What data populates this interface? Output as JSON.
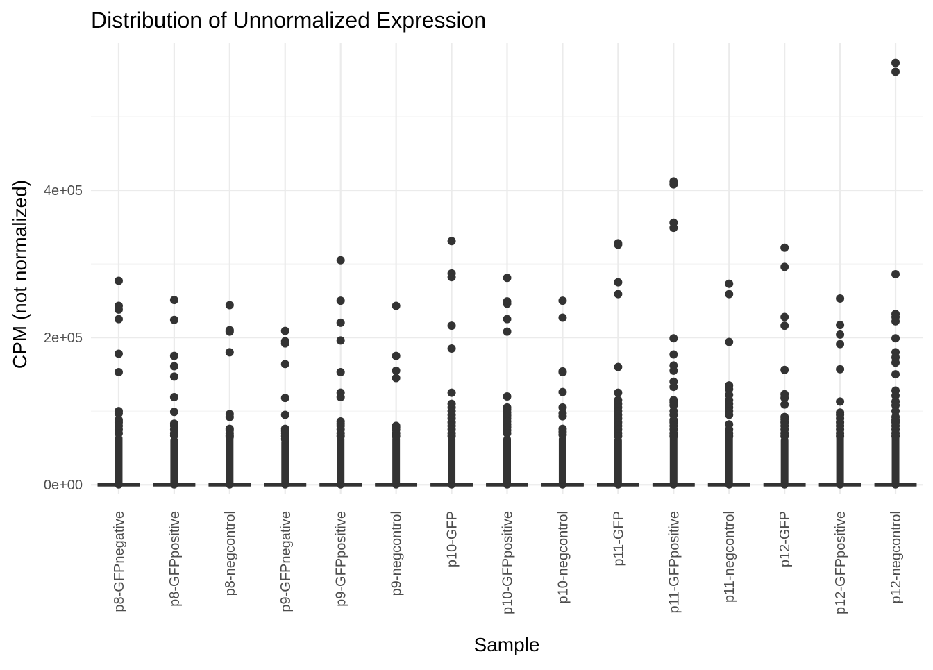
{
  "chart_data": {
    "type": "boxplot",
    "title": "Distribution of Unnormalized Expression",
    "xlabel": "Sample",
    "ylabel": "CPM (not normalized)",
    "ylim": [
      -13000,
      600000
    ],
    "y_ticks": [
      0,
      200000,
      400000
    ],
    "y_tick_labels": [
      "0e+00",
      "2e+05",
      "4e+05"
    ],
    "grid": true,
    "point_color": "#333333",
    "categories": [
      "p8-GFPnegative",
      "p8-GFPpositive",
      "p8-negcontrol",
      "p9-GFPnegative",
      "p9-GFPpositive",
      "p9-negcontrol",
      "p10-GFP",
      "p10-GFPpositive",
      "p10-negcontrol",
      "p11-GFP",
      "p11-GFPpositive",
      "p11-negcontrol",
      "p12-GFP",
      "p12-GFPpositive",
      "p12-negcontrol"
    ],
    "box": {
      "median": 0,
      "q1": 0,
      "q3": 0
    },
    "outlier_dense_max": [
      63000,
      60000,
      62000,
      58000,
      62000,
      62000,
      62000,
      62000,
      62000,
      60000,
      64000,
      64000,
      60000,
      63000,
      65000
    ],
    "outliers": [
      [
        277000,
        243000,
        238000,
        225000,
        178000,
        153000,
        100000,
        97000,
        88000,
        85000,
        80000,
        75000,
        70000
      ],
      [
        251000,
        224000,
        175000,
        161000,
        147000,
        119000,
        99000,
        83000,
        80000,
        75000,
        70000,
        67000
      ],
      [
        244000,
        210000,
        208000,
        180000,
        96000,
        92000,
        76000,
        74000,
        70000,
        67000,
        65000
      ],
      [
        209000,
        195000,
        192000,
        164000,
        118000,
        95000,
        76000,
        73000,
        70000,
        66000,
        62000
      ],
      [
        305000,
        250000,
        220000,
        196000,
        153000,
        125000,
        119000,
        86000,
        83000,
        80000,
        75000,
        70000,
        66000
      ],
      [
        243000,
        175000,
        155000,
        145000,
        80000,
        78000,
        75000,
        70000,
        66000
      ],
      [
        331000,
        287000,
        282000,
        216000,
        185000,
        125000,
        110000,
        105000,
        100000,
        95000,
        90000,
        85000,
        80000,
        75000,
        70000,
        66000
      ],
      [
        281000,
        249000,
        246000,
        225000,
        208000,
        120000,
        105000,
        102000,
        98000,
        94000,
        90000,
        86000,
        82000,
        78000,
        74000,
        70000
      ],
      [
        250000,
        227000,
        154000,
        153000,
        126000,
        105000,
        97000,
        93000,
        76000,
        72000,
        68000
      ],
      [
        328000,
        326000,
        275000,
        259000,
        160000,
        125000,
        115000,
        110000,
        105000,
        100000,
        95000,
        90000,
        85000,
        80000,
        75000,
        70000,
        66000
      ],
      [
        412000,
        408000,
        356000,
        349000,
        199000,
        177000,
        162000,
        155000,
        140000,
        133000,
        115000,
        112000,
        108000,
        100000,
        95000,
        88000,
        85000,
        80000,
        75000,
        70000,
        66000
      ],
      [
        273000,
        259000,
        194000,
        135000,
        130000,
        122000,
        115000,
        110000,
        105000,
        100000,
        95000,
        82000,
        75000,
        70000,
        66000
      ],
      [
        322000,
        296000,
        228000,
        216000,
        156000,
        123000,
        118000,
        109000,
        92000,
        89000,
        85000,
        80000,
        75000,
        70000,
        66000
      ],
      [
        253000,
        217000,
        204000,
        191000,
        157000,
        113000,
        98000,
        95000,
        90000,
        85000,
        80000,
        75000,
        70000,
        66000
      ],
      [
        573000,
        561000,
        286000,
        232000,
        228000,
        222000,
        199000,
        180000,
        173000,
        166000,
        150000,
        128000,
        121000,
        113000,
        108000,
        100000,
        92000,
        88000,
        85000,
        80000,
        75000,
        70000,
        66000
      ]
    ]
  }
}
